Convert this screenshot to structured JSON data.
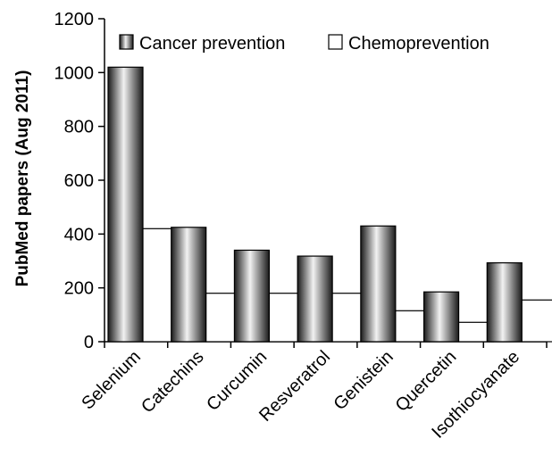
{
  "chart_data": {
    "type": "bar",
    "title": "",
    "xlabel": "",
    "ylabel": "PubMed papers (Aug 2011)",
    "ylim": [
      0,
      1200
    ],
    "yticks": [
      0,
      200,
      400,
      600,
      800,
      1000,
      1200
    ],
    "categories": [
      "Selenium",
      "Catechins",
      "Curcumin",
      "Resveratrol",
      "Genistein",
      "Quercetin",
      "Isothiocyanate"
    ],
    "series": [
      {
        "name": "Cancer prevention",
        "values": [
          1020,
          425,
          340,
          318,
          430,
          185,
          293
        ],
        "fill": "gradient-dark"
      },
      {
        "name": "Chemoprevention",
        "values": [
          420,
          180,
          180,
          180,
          115,
          72,
          155
        ],
        "fill": "#ffffff"
      }
    ],
    "legend": "top",
    "grid": false
  }
}
